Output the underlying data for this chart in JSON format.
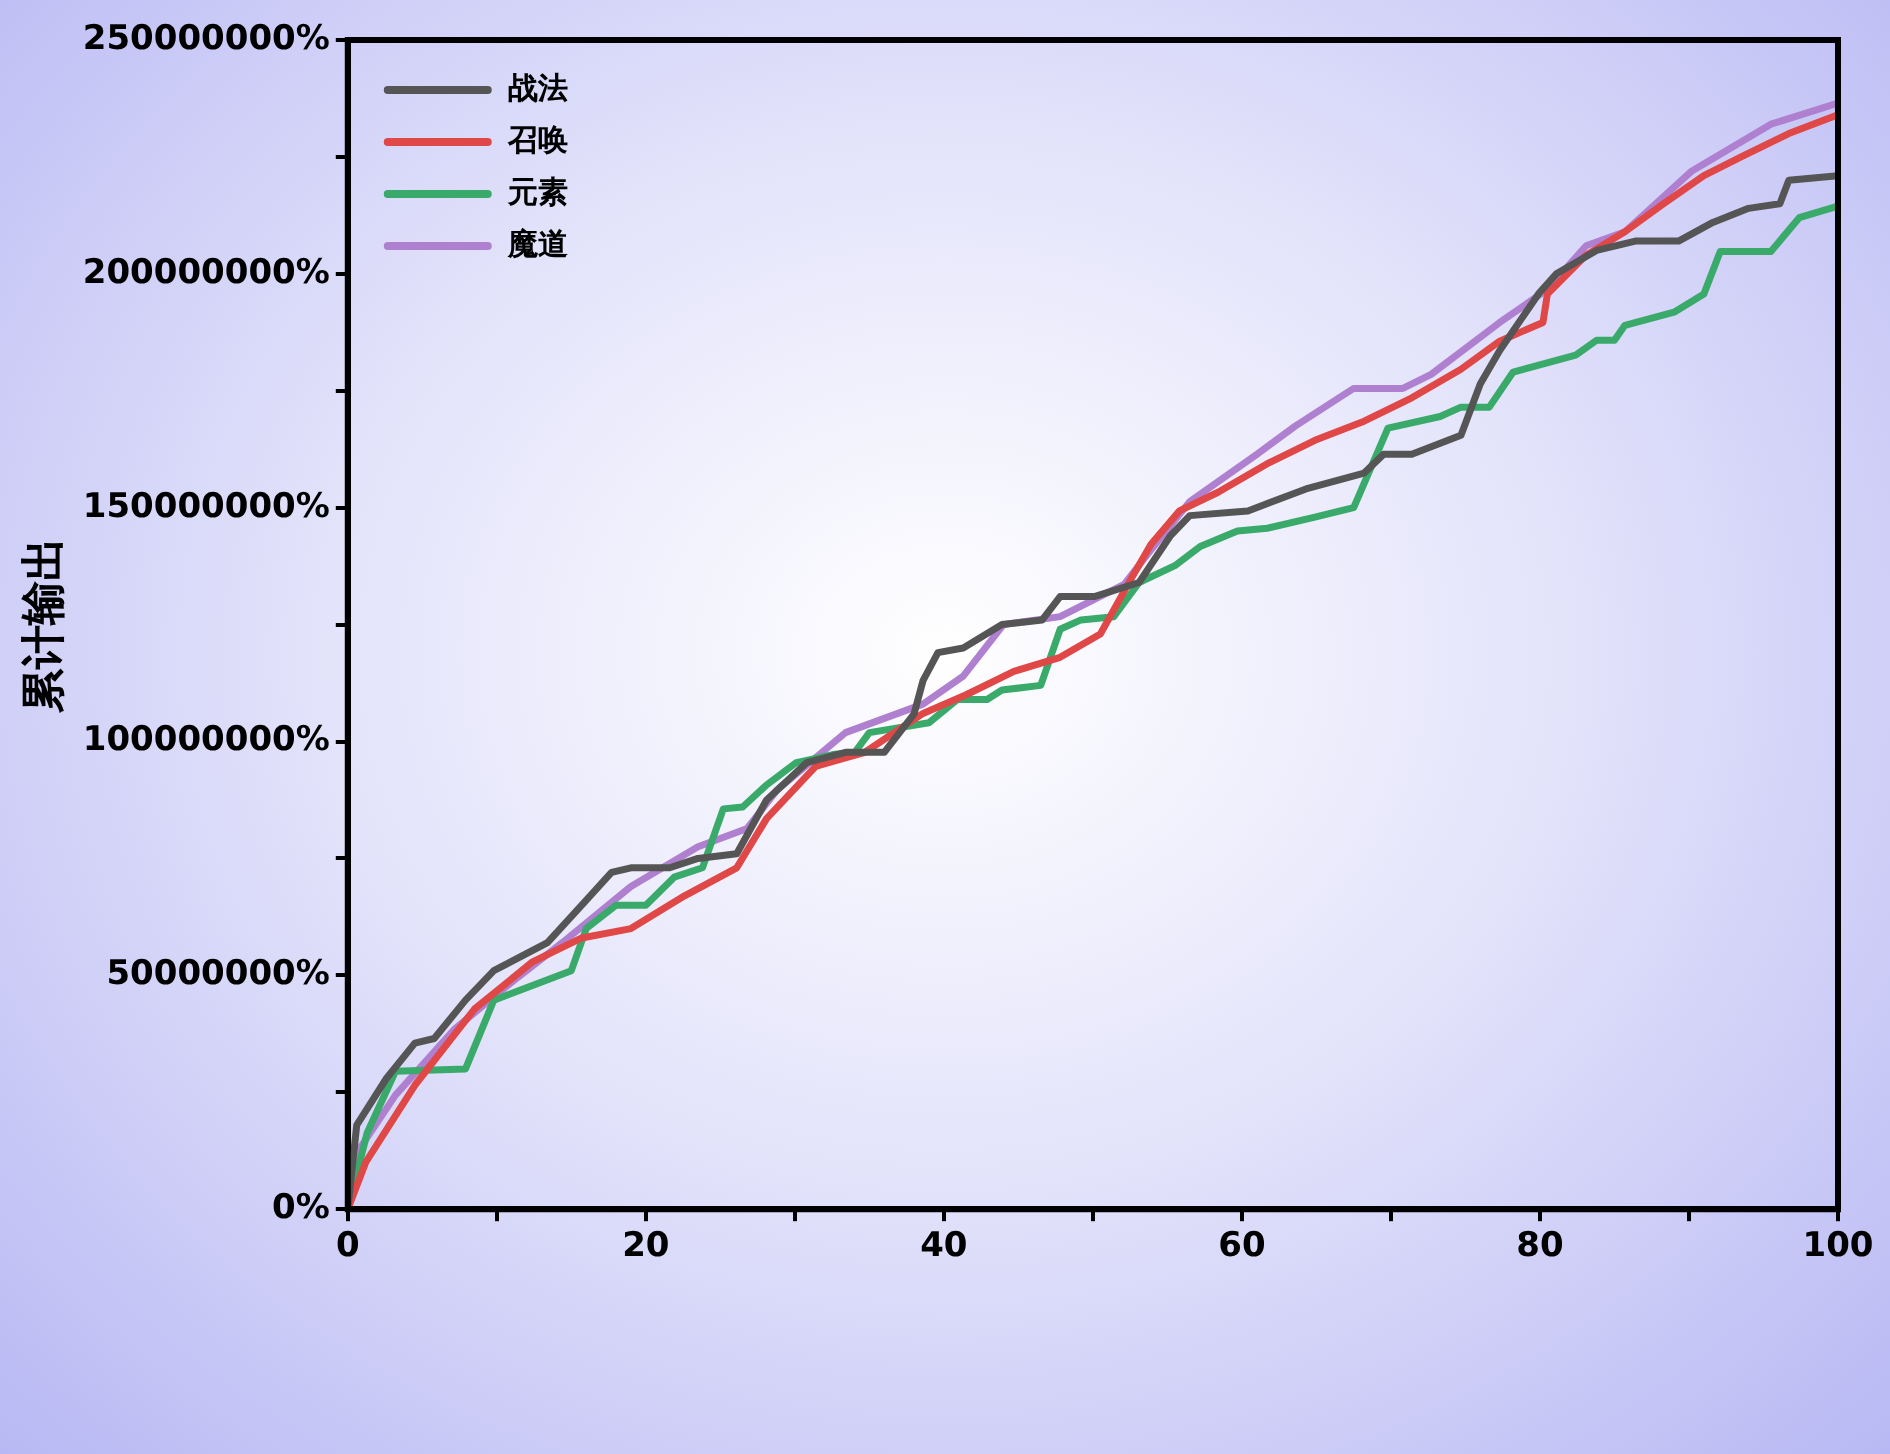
{
  "chart_data": {
    "type": "line",
    "ylabel": "累计输出",
    "xlim": [
      0,
      100
    ],
    "xticks": [
      0,
      {
        "value": 10,
        "label": null
      },
      20,
      {
        "value": 30,
        "label": null
      },
      40,
      {
        "value": 50,
        "label": null
      },
      60,
      {
        "value": 70,
        "label": null
      },
      80,
      {
        "value": 90,
        "label": null
      },
      100
    ],
    "ylim": [
      0,
      250000000
    ],
    "yticks": [
      {
        "value": 0,
        "label": "0%"
      },
      {
        "value": 25000000,
        "label": null
      },
      {
        "value": 50000000,
        "label": "50000000%"
      },
      {
        "value": 75000000,
        "label": null
      },
      {
        "value": 100000000,
        "label": "100000000%"
      },
      {
        "value": 125000000,
        "label": null
      },
      {
        "value": 150000000,
        "label": "150000000%"
      },
      {
        "value": 175000000,
        "label": null
      },
      {
        "value": 200000000,
        "label": "200000000%"
      },
      {
        "value": 225000000,
        "label": null
      },
      {
        "value": 250000000,
        "label": "250000000%"
      }
    ],
    "grid": false,
    "legend": "top left",
    "marker": "none",
    "line_style": "solid",
    "series": [
      {
        "name": "战法",
        "color": "#555555",
        "x": [
          0,
          0.6,
          2.6,
          4.5,
          5.8,
          7.9,
          9.8,
          13.4,
          15.7,
          17.7,
          19,
          21.6,
          23.5,
          26.1,
          28.1,
          30.8,
          33.4,
          36,
          38,
          38.6,
          39.6,
          41.3,
          43.9,
          46.6,
          47.8,
          50.1,
          53.1,
          55.2,
          56.5,
          60.4,
          64.3,
          68.2,
          69.5,
          71.4,
          74.7,
          76,
          77.3,
          79.9,
          81.1,
          83.8,
          86.4,
          89.3,
          91.6,
          94,
          96.1,
          96.7,
          100
        ],
        "values": [
          0,
          18000000,
          28000000,
          35500000,
          36500000,
          44700000,
          51000000,
          57000000,
          65000000,
          72000000,
          73000000,
          73000000,
          75000000,
          76000000,
          87500000,
          95500000,
          97700000,
          97700000,
          105900000,
          113000000,
          119000000,
          120000000,
          125000000,
          126000000,
          131000000,
          131000000,
          134000000,
          144000000,
          148300000,
          149300000,
          154000000,
          157400000,
          161400000,
          161400000,
          165500000,
          176500000,
          183600000,
          195700000,
          200000000,
          205000000,
          207000000,
          207000000,
          211000000,
          214000000,
          215000000,
          220000000,
          221000000
        ]
      },
      {
        "name": "召唤",
        "color": "#e04848",
        "x": [
          0,
          1.2,
          4.5,
          8.5,
          12.4,
          15.7,
          19,
          22.6,
          26.1,
          28.1,
          31.4,
          34.7,
          38.6,
          41.5,
          44.7,
          47.8,
          50.5,
          52.6,
          53.9,
          55.8,
          58.4,
          61.7,
          64.9,
          68.2,
          71.4,
          74.7,
          77.3,
          80.2,
          80.5,
          83.1,
          85.7,
          88.3,
          91,
          93.5,
          96.7,
          100
        ],
        "values": [
          0,
          10000000,
          26500000,
          42800000,
          52900000,
          58000000,
          60000000,
          67000000,
          73000000,
          83500000,
          94700000,
          97700000,
          106000000,
          110000000,
          115000000,
          118000000,
          123000000,
          135000000,
          142200000,
          149300000,
          153300000,
          159400000,
          164400000,
          168500000,
          173500000,
          179600000,
          185600000,
          189600000,
          195700000,
          204000000,
          209000000,
          215000000,
          221000000,
          225000000,
          230000000,
          234000000
        ]
      },
      {
        "name": "元素",
        "color": "#3aaa6a",
        "x": [
          0,
          1.3,
          3.2,
          7.9,
          9.8,
          15,
          16,
          18,
          20,
          21.9,
          23.8,
          25.2,
          26.5,
          28.1,
          30.1,
          32.7,
          34,
          35,
          39,
          40.9,
          42.9,
          43.9,
          46.5,
          47.8,
          49.2,
          51.4,
          53.1,
          55.5,
          57.2,
          59.7,
          61.7,
          64.9,
          67.5,
          69.8,
          73.3,
          74.7,
          76.6,
          78.2,
          82.4,
          83.8,
          85,
          85.7,
          89,
          91,
          92.1,
          95.5,
          97.4,
          100
        ],
        "values": [
          0,
          16300000,
          29500000,
          30000000,
          44700000,
          51000000,
          60000000,
          65000000,
          65000000,
          71000000,
          73000000,
          85600000,
          86000000,
          90700000,
          95500000,
          97300000,
          97600000,
          101900000,
          104000000,
          109000000,
          109000000,
          111000000,
          112000000,
          124000000,
          126000000,
          126700000,
          134000000,
          137600000,
          141700000,
          145000000,
          145600000,
          148000000,
          150000000,
          167000000,
          169500000,
          171500000,
          171500000,
          179000000,
          182600000,
          185800000,
          185800000,
          189000000,
          191800000,
          195700000,
          204800000,
          204800000,
          212000000,
          214500000
        ]
      },
      {
        "name": "魔道",
        "color": "#b080d0",
        "x": [
          0,
          0.6,
          3.2,
          7.2,
          11.1,
          14.4,
          19,
          23.5,
          26.8,
          28.8,
          33.4,
          38.6,
          41.3,
          44,
          47.8,
          52.1,
          53.9,
          56.5,
          61,
          63.6,
          67.5,
          70.8,
          72.7,
          77.3,
          80.5,
          83.1,
          85.7,
          90.2,
          95.5,
          100
        ],
        "values": [
          0,
          12000000,
          24400000,
          38600000,
          48800000,
          57000000,
          69000000,
          77500000,
          81400000,
          89600000,
          101900000,
          108000000,
          114000000,
          125000000,
          126700000,
          133600000,
          141000000,
          151300000,
          161400000,
          167500000,
          175500000,
          175500000,
          178500000,
          189600000,
          196700000,
          206000000,
          209000000,
          222000000,
          232000000,
          236500000
        ]
      }
    ]
  }
}
